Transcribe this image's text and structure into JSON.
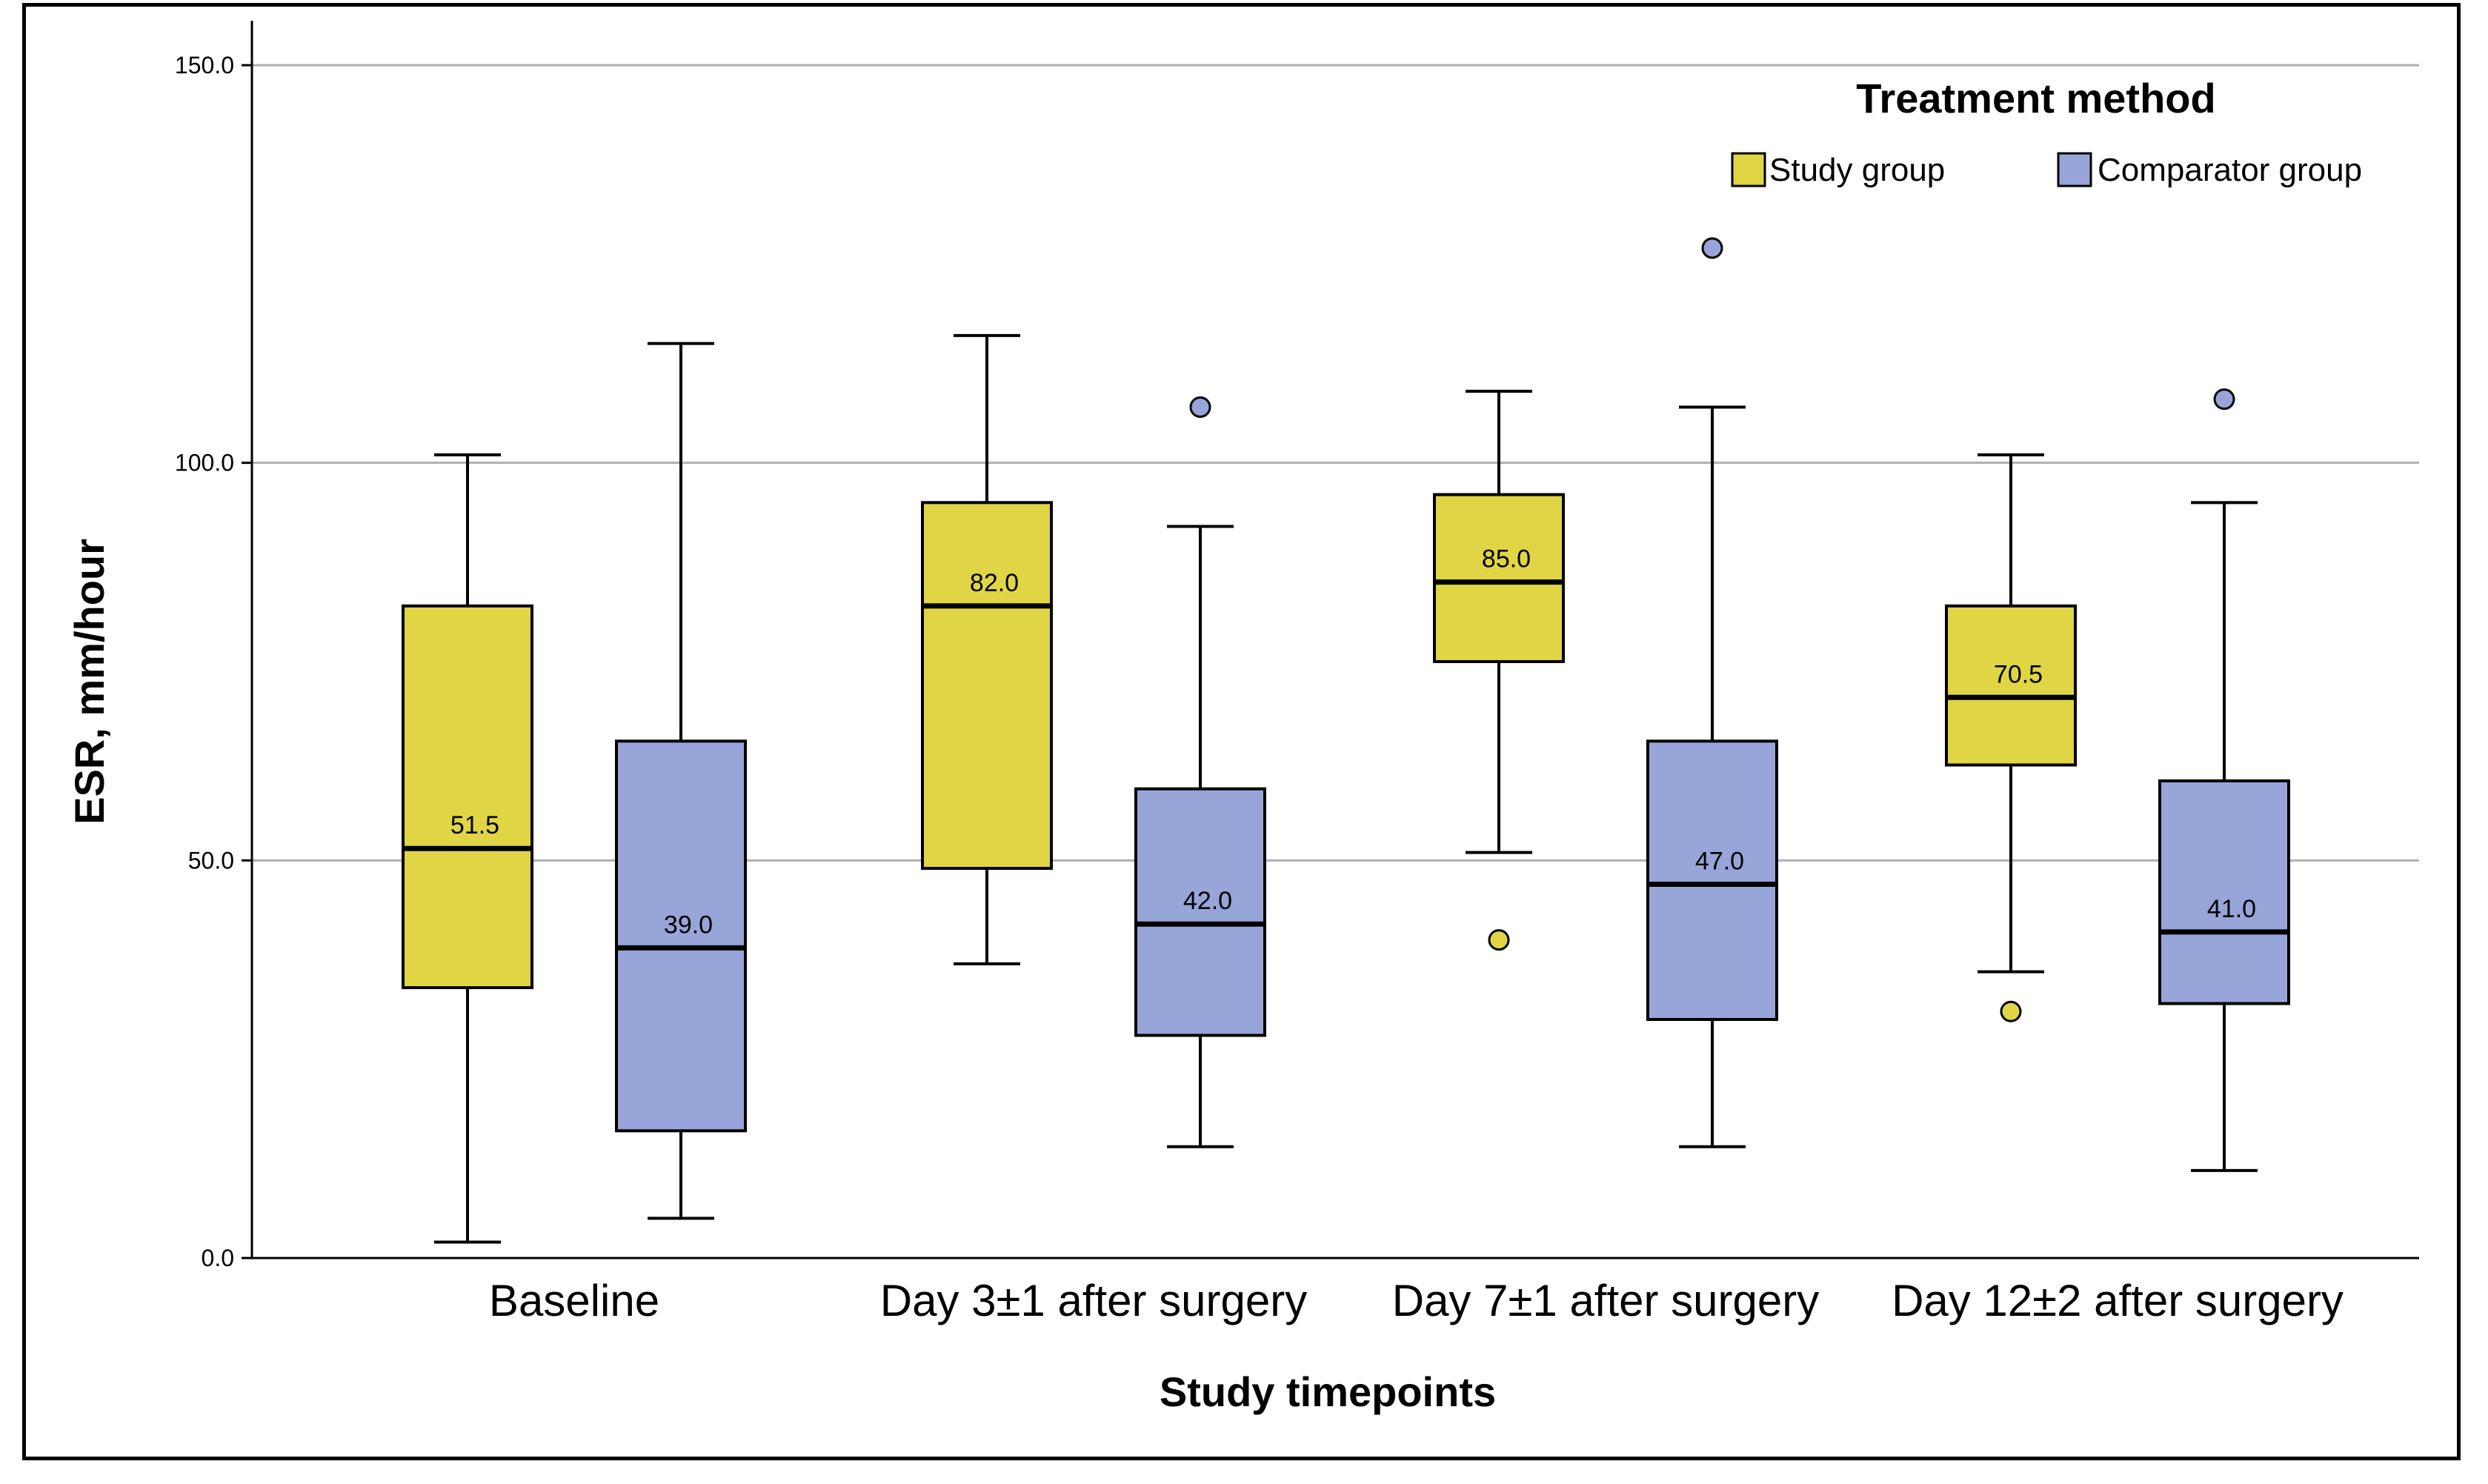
{
  "chart_data": {
    "type": "box",
    "title": "",
    "xlabel": "Study timepoints",
    "ylabel": "ESR, mm/hour",
    "ylim": [
      0,
      150
    ],
    "yticks": [
      0,
      50,
      100,
      150
    ],
    "ytick_labels": [
      "0.0",
      "50.0",
      "100.0",
      "150.0"
    ],
    "grid": true,
    "legend": {
      "title": "Treatment method",
      "position": "top-right",
      "entries": [
        {
          "name": "Study group",
          "color": "#e0d544"
        },
        {
          "name": "Comparator group",
          "color": "#97a5d8"
        }
      ]
    },
    "categories": [
      "Baseline",
      "Day 3±1 after surgery",
      "Day 7±1 after surgery",
      "Day 12±2 after surgery"
    ],
    "series": [
      {
        "name": "Study group",
        "color": "#e0d544",
        "boxes": [
          {
            "whisker_low": 2,
            "q1": 34,
            "median": 51.5,
            "q3": 82,
            "whisker_high": 101,
            "median_label": "51.5",
            "outliers": []
          },
          {
            "whisker_low": 37,
            "q1": 49,
            "median": 82.0,
            "q3": 95,
            "whisker_high": 116,
            "median_label": "82.0",
            "outliers": []
          },
          {
            "whisker_low": 51,
            "q1": 75,
            "median": 85.0,
            "q3": 96,
            "whisker_high": 109,
            "median_label": "85.0",
            "outliers": [
              40
            ]
          },
          {
            "whisker_low": 36,
            "q1": 62,
            "median": 70.5,
            "q3": 82,
            "whisker_high": 101,
            "median_label": "70.5",
            "outliers": [
              31
            ]
          }
        ]
      },
      {
        "name": "Comparator group",
        "color": "#97a5d8",
        "boxes": [
          {
            "whisker_low": 5,
            "q1": 16,
            "median": 39.0,
            "q3": 65,
            "whisker_high": 115,
            "median_label": "39.0",
            "outliers": []
          },
          {
            "whisker_low": 14,
            "q1": 28,
            "median": 42.0,
            "q3": 59,
            "whisker_high": 92,
            "median_label": "42.0",
            "outliers": [
              107
            ]
          },
          {
            "whisker_low": 14,
            "q1": 30,
            "median": 47.0,
            "q3": 65,
            "whisker_high": 107,
            "median_label": "47.0",
            "outliers": [
              127
            ]
          },
          {
            "whisker_low": 11,
            "q1": 32,
            "median": 41.0,
            "q3": 60,
            "whisker_high": 95,
            "median_label": "41.0",
            "outliers": [
              108
            ]
          }
        ]
      }
    ]
  }
}
